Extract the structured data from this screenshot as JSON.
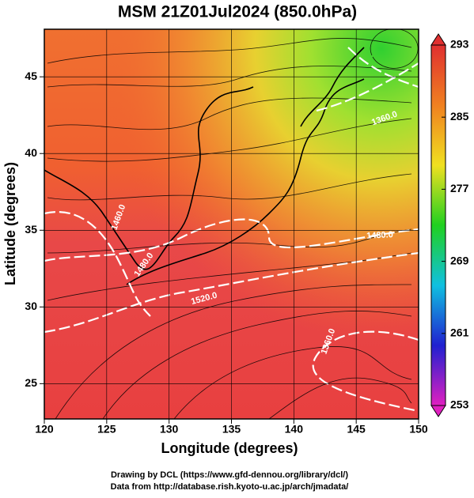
{
  "chart_data": {
    "type": "map",
    "title": "MSM 21Z01Jul2024 (850.0hPa)",
    "x_label": "Longitude (degrees)",
    "y_label": "Latitude  (degrees)",
    "xlim": [
      120,
      150
    ],
    "xticks": [
      120,
      125,
      130,
      135,
      140,
      145,
      150
    ],
    "ylim": [
      22.7,
      48.1
    ],
    "yticks": [
      25,
      30,
      35,
      40,
      45
    ],
    "grid": true,
    "colorbar": {
      "lim": [
        253,
        293
      ],
      "ticks": [
        253,
        261,
        269,
        277,
        285,
        293
      ],
      "colors": [
        "#e020c0",
        "#2020d0",
        "#10c0e0",
        "#20d020",
        "#f0e020",
        "#f08020",
        "#e03030"
      ]
    },
    "annotations": [
      "1460.0",
      "1480.0",
      "1480.0",
      "1520.0",
      "1360.0",
      "1360.0"
    ],
    "footer": [
      "Drawing by DCL (https://www.gfd-dennou.org/library/dcl/)",
      "Data from http://database.rish.kyoto-u.ac.jp/arch/jmadata/"
    ]
  }
}
